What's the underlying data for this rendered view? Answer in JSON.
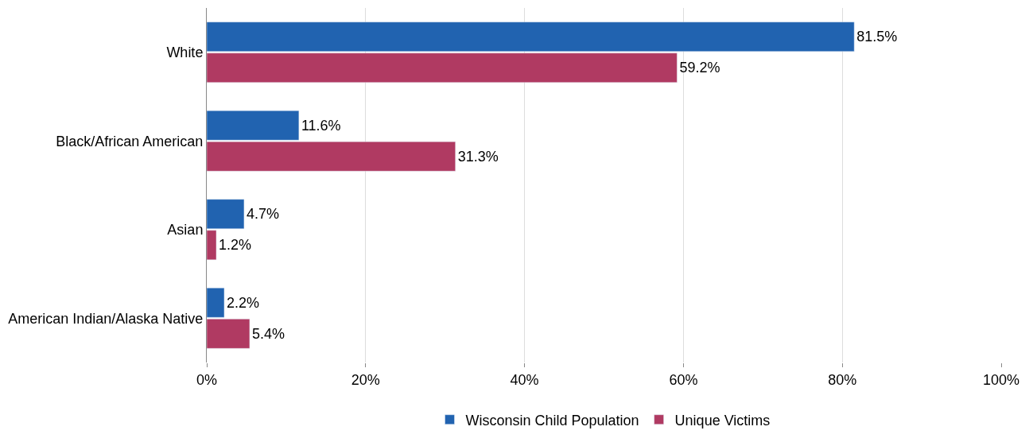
{
  "chart_data": {
    "type": "bar",
    "orientation": "horizontal",
    "categories": [
      "White",
      "Black/African American",
      "Asian",
      "American Indian/Alaska Native"
    ],
    "series": [
      {
        "name": "Wisconsin Child Population",
        "color": "#2163b0",
        "values": [
          81.5,
          11.6,
          4.7,
          2.2
        ],
        "value_labels": [
          "81.5%",
          "11.6%",
          "4.7%",
          "2.2%"
        ]
      },
      {
        "name": "Unique Victims",
        "color": "#b03a62",
        "values": [
          59.2,
          31.3,
          1.2,
          5.4
        ],
        "value_labels": [
          "59.2%",
          "31.3%",
          "1.2%",
          "5.4%"
        ]
      }
    ],
    "xlim": [
      0,
      100
    ],
    "xticks": [
      {
        "value": 0,
        "label": "0%"
      },
      {
        "value": 20,
        "label": "20%"
      },
      {
        "value": 40,
        "label": "40%"
      },
      {
        "value": 60,
        "label": "60%"
      },
      {
        "value": 80,
        "label": "80%"
      },
      {
        "value": 100,
        "label": "100%"
      }
    ],
    "grid": "x",
    "legend": "bottom"
  }
}
